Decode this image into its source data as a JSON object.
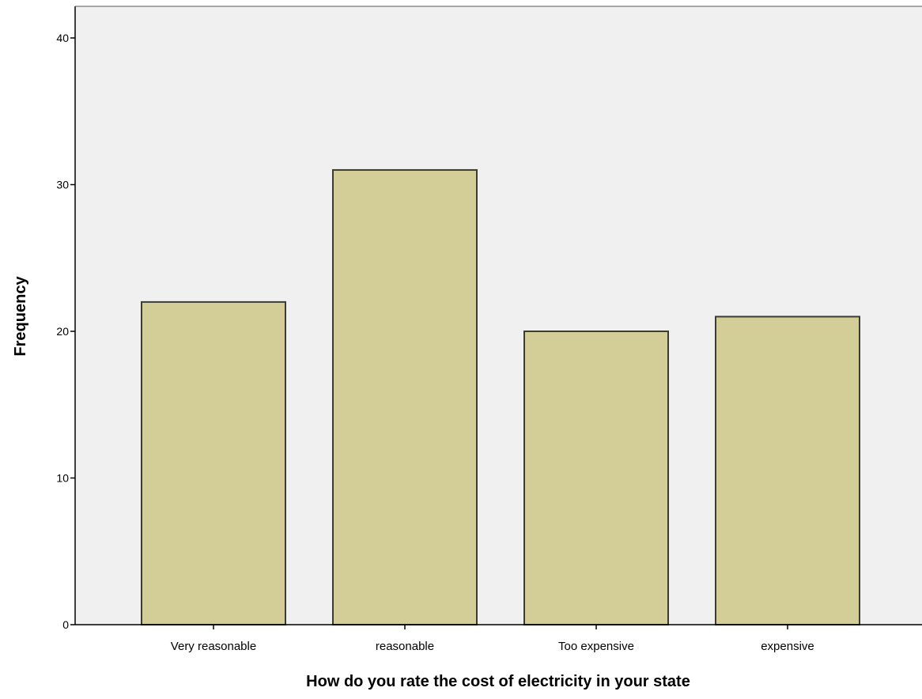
{
  "chart_data": {
    "type": "bar",
    "categories": [
      "Very reasonable",
      "reasonable",
      "Too expensive",
      "expensive"
    ],
    "values": [
      22,
      31,
      20,
      21
    ],
    "title": "",
    "xlabel": "How do you rate the cost of electricity in your state",
    "ylabel": "Frequency",
    "ylim": [
      0,
      42
    ],
    "yticks": [
      0,
      10,
      20,
      30,
      40
    ],
    "grid": false,
    "colors": {
      "bar_fill": "#d3cd97",
      "bar_stroke": "#3c3c32",
      "plot_background": "#f0f0f0",
      "axis": "#000000"
    }
  }
}
